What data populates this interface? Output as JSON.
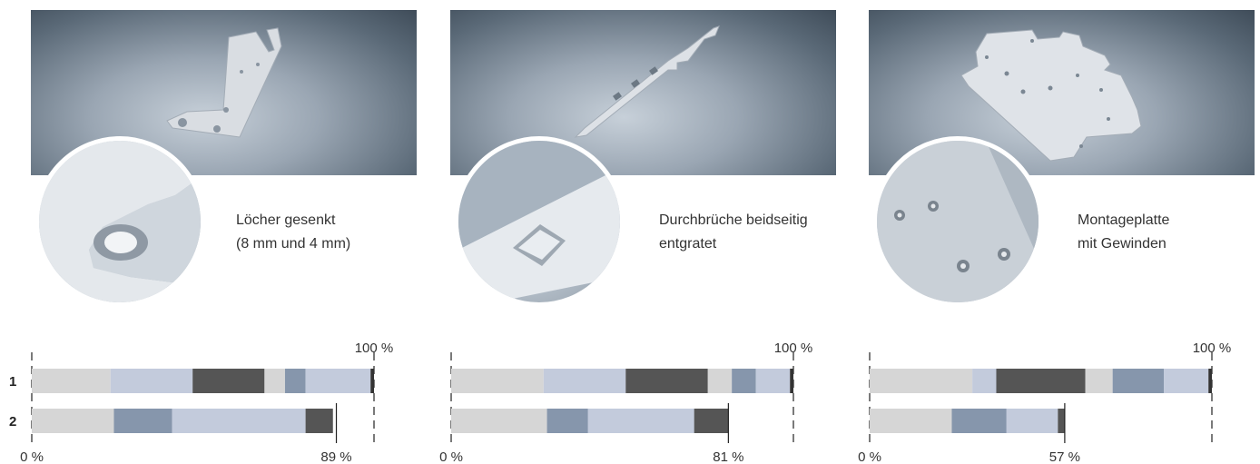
{
  "colors": {
    "light_grey": "#d6d6d6",
    "pale_blue": "#c3cbdc",
    "dark_grey": "#555555",
    "steel_blue": "#8696ac",
    "near_black": "#333333"
  },
  "rows": [
    "1",
    "2"
  ],
  "panels": [
    {
      "caption_line1": "Löcher gesenkt",
      "caption_line2": "(8 mm und 4 mm)",
      "image_icon": "sheet-metal-bracket-icon",
      "zoom_icon": "countersunk-hole-icon",
      "axis_start": "0 %",
      "row1_total_label": "100 %",
      "row2_total_label": "89 %",
      "row1": {
        "total": 100,
        "segments": [
          {
            "color": "light_grey",
            "value": 23
          },
          {
            "color": "pale_blue",
            "value": 24
          },
          {
            "color": "dark_grey",
            "value": 21
          },
          {
            "color": "light_grey",
            "value": 6
          },
          {
            "color": "steel_blue",
            "value": 6
          },
          {
            "color": "pale_blue",
            "value": 19
          },
          {
            "color": "near_black",
            "value": 1
          }
        ]
      },
      "row2": {
        "total": 89,
        "segments": [
          {
            "color": "light_grey",
            "value": 24
          },
          {
            "color": "steel_blue",
            "value": 17
          },
          {
            "color": "pale_blue",
            "value": 39
          },
          {
            "color": "dark_grey",
            "value": 8
          }
        ]
      }
    },
    {
      "caption_line1": "Durchbrüche beidseitig",
      "caption_line2": "entgratet",
      "image_icon": "sheet-metal-strip-icon",
      "zoom_icon": "deburred-cutout-icon",
      "axis_start": "0 %",
      "row1_total_label": "100 %",
      "row2_total_label": "81 %",
      "row1": {
        "total": 100,
        "segments": [
          {
            "color": "light_grey",
            "value": 27
          },
          {
            "color": "pale_blue",
            "value": 24
          },
          {
            "color": "dark_grey",
            "value": 24
          },
          {
            "color": "light_grey",
            "value": 7
          },
          {
            "color": "steel_blue",
            "value": 7
          },
          {
            "color": "pale_blue",
            "value": 10
          },
          {
            "color": "near_black",
            "value": 1
          }
        ]
      },
      "row2": {
        "total": 81,
        "segments": [
          {
            "color": "light_grey",
            "value": 28
          },
          {
            "color": "steel_blue",
            "value": 12
          },
          {
            "color": "pale_blue",
            "value": 31
          },
          {
            "color": "dark_grey",
            "value": 10
          }
        ]
      }
    },
    {
      "caption_line1": "Montageplatte",
      "caption_line2": "mit Gewinden",
      "image_icon": "mounting-plate-icon",
      "zoom_icon": "threaded-holes-icon",
      "axis_start": "0 %",
      "row1_total_label": "100 %",
      "row2_total_label": "57 %",
      "row1": {
        "total": 100,
        "segments": [
          {
            "color": "light_grey",
            "value": 30
          },
          {
            "color": "pale_blue",
            "value": 7
          },
          {
            "color": "dark_grey",
            "value": 26
          },
          {
            "color": "light_grey",
            "value": 8
          },
          {
            "color": "steel_blue",
            "value": 15
          },
          {
            "color": "pale_blue",
            "value": 13
          },
          {
            "color": "near_black",
            "value": 1
          }
        ]
      },
      "row2": {
        "total": 57,
        "segments": [
          {
            "color": "light_grey",
            "value": 24
          },
          {
            "color": "steel_blue",
            "value": 16
          },
          {
            "color": "pale_blue",
            "value": 15
          },
          {
            "color": "dark_grey",
            "value": 2
          }
        ]
      }
    }
  ]
}
